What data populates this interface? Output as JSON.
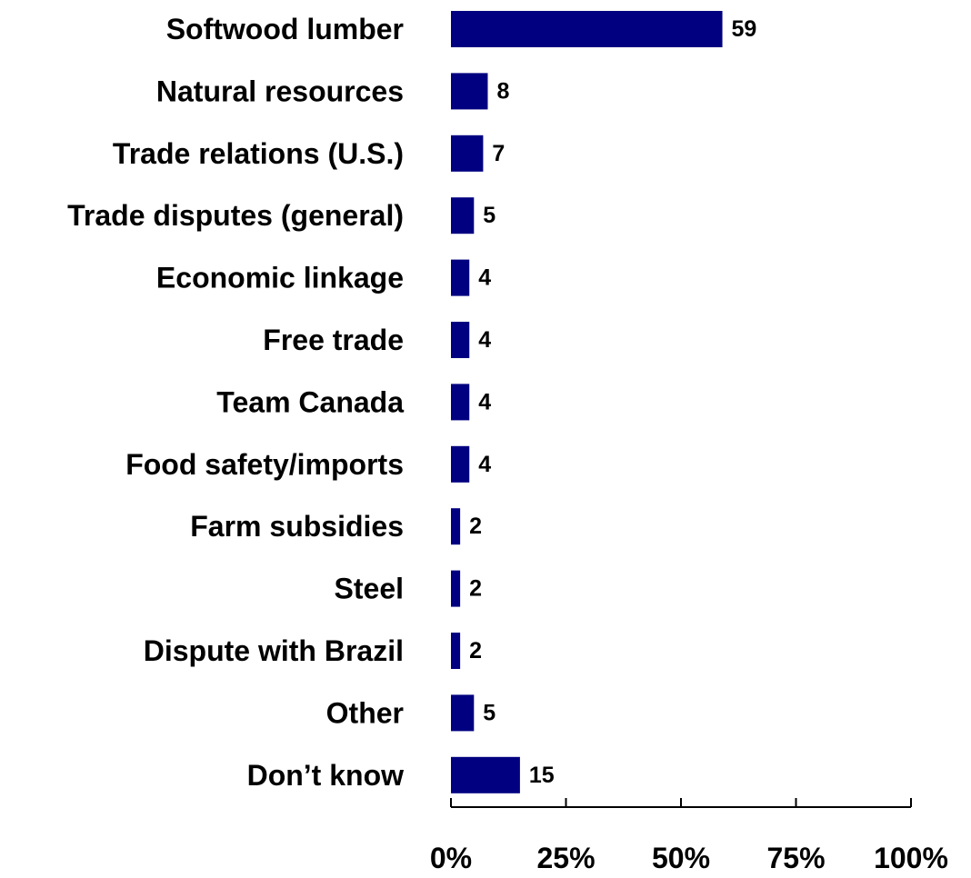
{
  "chart_data": {
    "type": "bar",
    "orientation": "horizontal",
    "categories": [
      "Softwood lumber",
      "Natural resources",
      "Trade relations (U.S.)",
      "Trade disputes (general)",
      "Economic linkage",
      "Free trade",
      "Team Canada",
      "Food safety/imports",
      "Farm subsidies",
      "Steel",
      "Dispute with Brazil",
      "Other",
      "Don’t know"
    ],
    "values": [
      59,
      8,
      7,
      5,
      4,
      4,
      4,
      4,
      2,
      2,
      2,
      5,
      15
    ],
    "xlim": [
      0,
      100
    ],
    "xticks": [
      0,
      25,
      50,
      75,
      100
    ],
    "xtick_labels": [
      "0%",
      "25%",
      "50%",
      "75%",
      "100%"
    ],
    "bar_color": "#000080",
    "grid": false,
    "legend": "none"
  }
}
